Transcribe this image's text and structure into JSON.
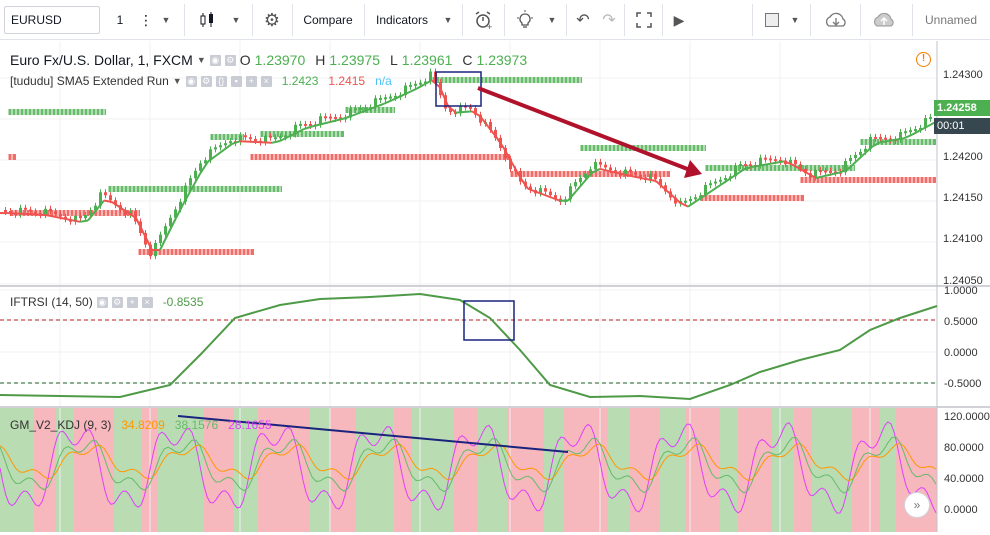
{
  "toolbar": {
    "symbol": "EURUSD",
    "interval": "1",
    "compare_label": "Compare",
    "indicators_label": "Indicators",
    "layout_name": "Unnamed"
  },
  "main_legend": {
    "title": "Euro Fx/U.S. Dollar, 1, FXCM",
    "o_label": "O",
    "o_value": "1.23970",
    "h_label": "H",
    "h_value": "1.23975",
    "l_label": "L",
    "l_value": "1.23961",
    "c_label": "C",
    "c_value": "1.23973"
  },
  "sma_legend": {
    "name": "[tududu] SMA5 Extended Run",
    "v1": "1.2423",
    "v2": "1.2415",
    "v3": "n/a"
  },
  "iftrsi_legend": {
    "name": "IFTRSI (14, 50)",
    "value": "-0.8535"
  },
  "kdj_legend": {
    "name": "GM_V2_KDJ (9, 3)",
    "k": "34.8209",
    "d": "38.1576",
    "j": "28.1655"
  },
  "price_axis": {
    "ticks": [
      "1.24300",
      "1.24250",
      "1.24200",
      "1.24150",
      "1.24100",
      "1.24050"
    ],
    "current_price": "1.24258",
    "countdown": "00:01"
  },
  "iftrsi_axis": {
    "ticks": [
      "1.0000",
      "0.5000",
      "0.0000",
      "-0.5000"
    ]
  },
  "kdj_axis": {
    "ticks": [
      "120.0000",
      "80.0000",
      "40.0000",
      "0.0000"
    ]
  },
  "colors": {
    "bull": "#4caf50",
    "bear": "#ef5350",
    "iftrsi_line": "#4e9a47",
    "annotation_arrow": "#b0122b",
    "annotation_box": "#1a237e",
    "trend_line": "#1a237e"
  },
  "icons": [
    "candles-icon",
    "gear-icon",
    "alert-icon",
    "lightbulb-icon",
    "undo-icon",
    "redo-icon",
    "fullscreen-icon",
    "play-icon",
    "cloud-download-icon",
    "cloud-upload-icon",
    "warning-icon",
    "fast-forward-icon"
  ]
}
